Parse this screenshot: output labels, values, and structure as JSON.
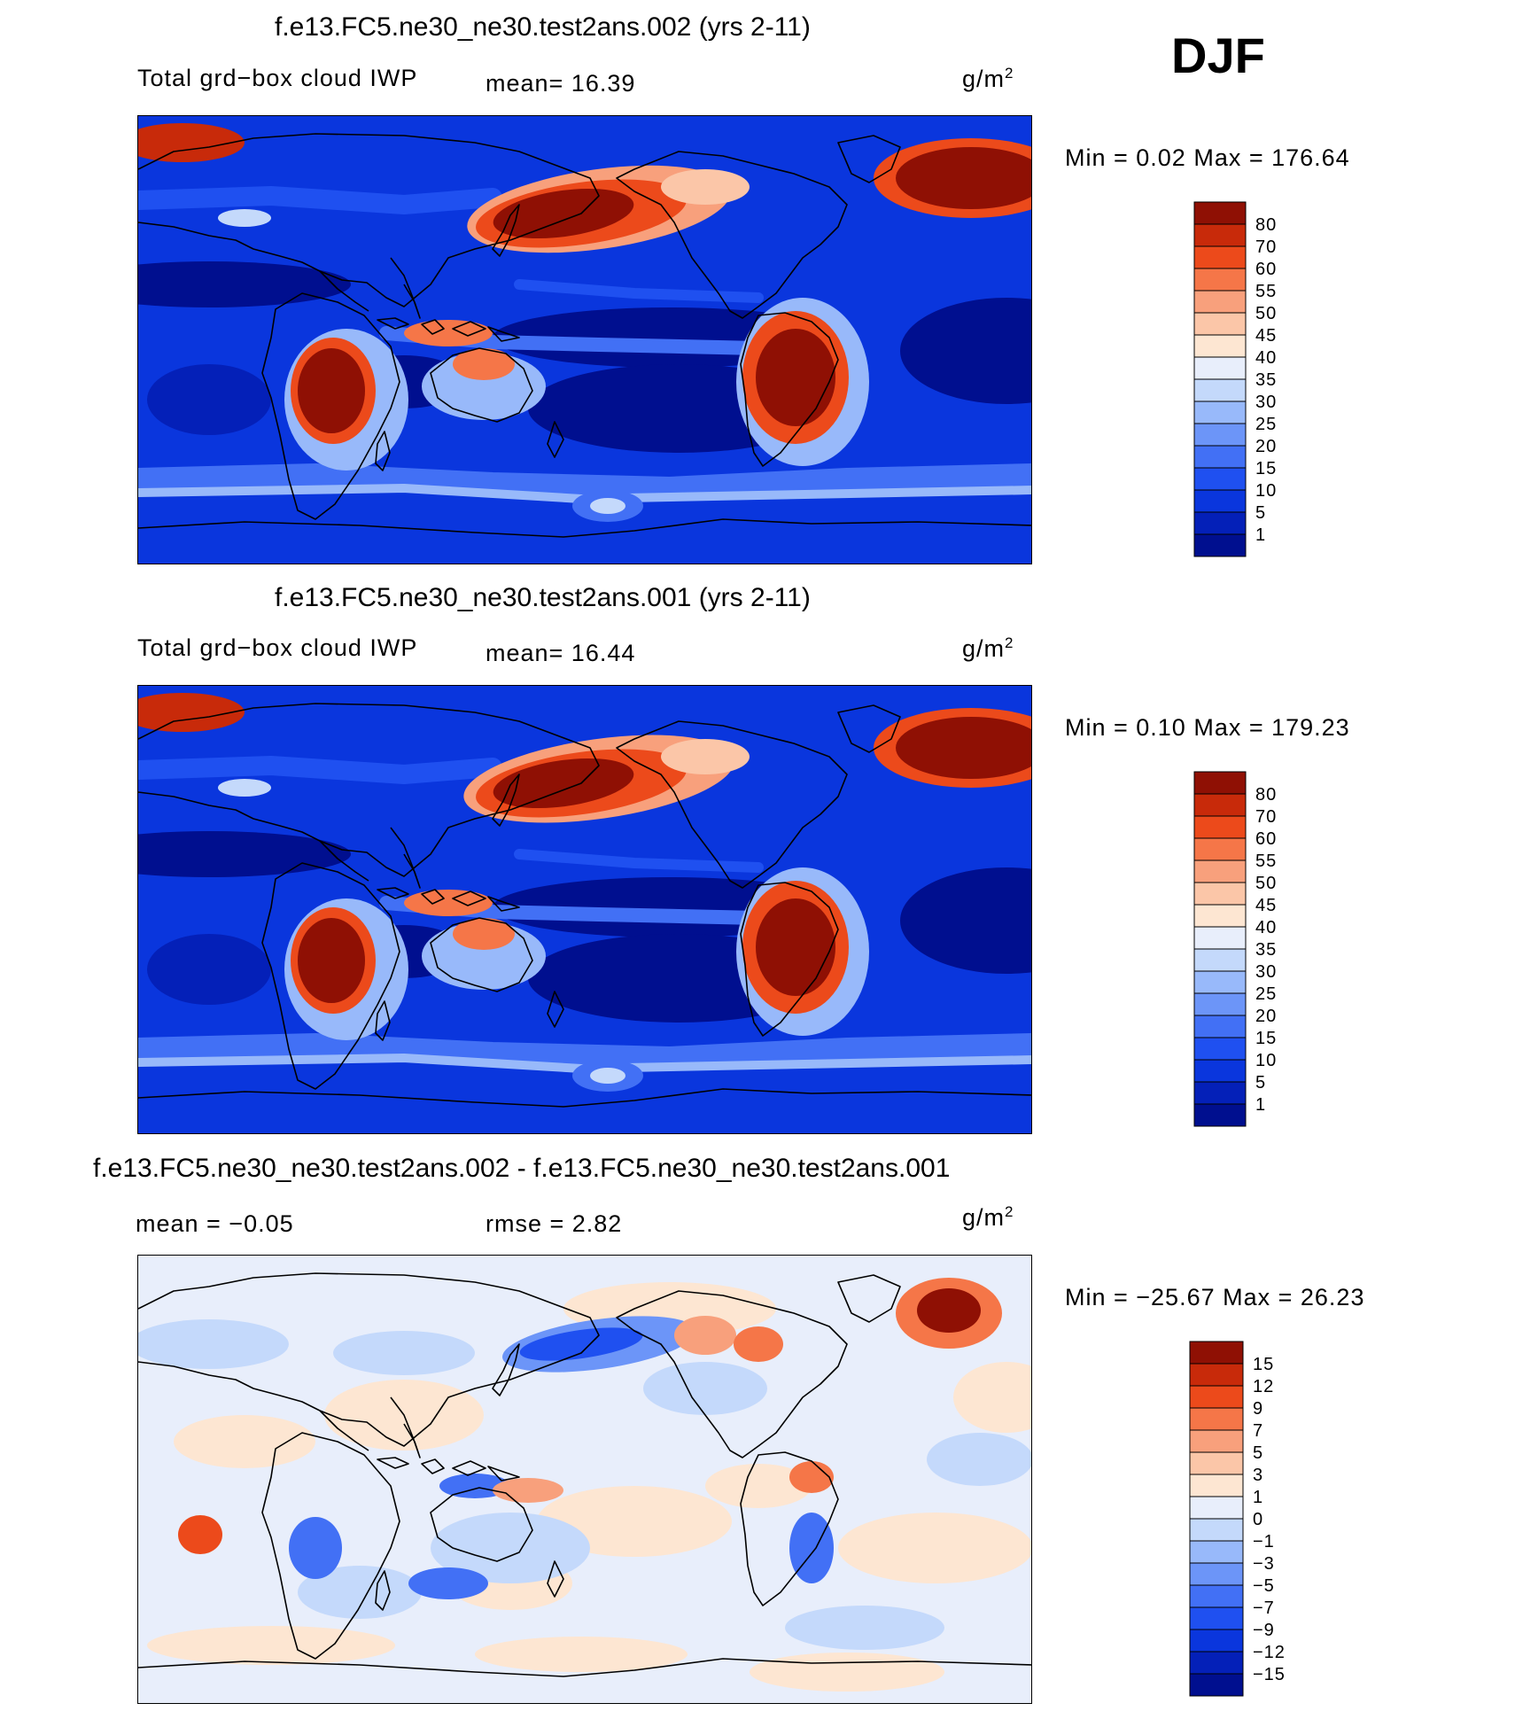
{
  "season_label": "DJF",
  "panels": [
    {
      "title": "f.e13.FC5.ne30_ne30.test2ans.002 (yrs 2-11)",
      "left_label": "Total grd−box cloud IWP",
      "center_label": "mean=   16.39",
      "unit": "g/m",
      "unit_exp": "2",
      "minmax": "Min =    0.02 Max = 176.64",
      "colorbar_key": "main"
    },
    {
      "title": "f.e13.FC5.ne30_ne30.test2ans.001 (yrs 2-11)",
      "left_label": "Total grd−box cloud IWP",
      "center_label": "mean=   16.44",
      "unit": "g/m",
      "unit_exp": "2",
      "minmax": "Min =    0.10 Max = 179.23",
      "colorbar_key": "main"
    },
    {
      "title": "f.e13.FC5.ne30_ne30.test2ans.002 - f.e13.FC5.ne30_ne30.test2ans.001",
      "left_label": "mean =  −0.05",
      "center_label": "rmse =    2.82",
      "unit": "g/m",
      "unit_exp": "2",
      "minmax": "Min = −25.67 Max =  26.23",
      "colorbar_key": "diff"
    }
  ],
  "chart_data": [
    {
      "type": "heatmap",
      "title": "f.e13.FC5.ne30_ne30.test2ans.002 (yrs 2-11)",
      "variable": "Total grd−box cloud IWP",
      "units": "g/m2",
      "mean": 16.39,
      "min": 0.02,
      "max": 176.64,
      "contour_levels": [
        1,
        5,
        10,
        15,
        20,
        25,
        30,
        35,
        40,
        45,
        50,
        55,
        60,
        70,
        80
      ],
      "colors": [
        "#000f8f",
        "#0420b8",
        "#0a36dd",
        "#1f50f0",
        "#4270f5",
        "#6c95f8",
        "#98b9fa",
        "#c4d9fb",
        "#e8eefb",
        "#fde6d2",
        "#fbc6a8",
        "#f8a07c",
        "#f57648",
        "#ec4a1b",
        "#c82a0a",
        "#8f1004"
      ]
    },
    {
      "type": "heatmap",
      "title": "f.e13.FC5.ne30_ne30.test2ans.001 (yrs 2-11)",
      "variable": "Total grd−box cloud IWP",
      "units": "g/m2",
      "mean": 16.44,
      "min": 0.1,
      "max": 179.23,
      "contour_levels": [
        1,
        5,
        10,
        15,
        20,
        25,
        30,
        35,
        40,
        45,
        50,
        55,
        60,
        70,
        80
      ],
      "colors": [
        "#000f8f",
        "#0420b8",
        "#0a36dd",
        "#1f50f0",
        "#4270f5",
        "#6c95f8",
        "#98b9fa",
        "#c4d9fb",
        "#e8eefb",
        "#fde6d2",
        "#fbc6a8",
        "#f8a07c",
        "#f57648",
        "#ec4a1b",
        "#c82a0a",
        "#8f1004"
      ]
    },
    {
      "type": "heatmap",
      "title": "f.e13.FC5.ne30_ne30.test2ans.002 - f.e13.FC5.ne30_ne30.test2ans.001",
      "units": "g/m2",
      "mean": -0.05,
      "rmse": 2.82,
      "min": -25.67,
      "max": 26.23,
      "contour_levels": [
        -15,
        -12,
        -9,
        -7,
        -5,
        -3,
        -1,
        0,
        1,
        3,
        5,
        7,
        9,
        12,
        15
      ],
      "colors": [
        "#000f8f",
        "#0420b8",
        "#0a36dd",
        "#1f50f0",
        "#4270f5",
        "#6c95f8",
        "#98b9fa",
        "#c4d9fb",
        "#e8eefb",
        "#fde6d2",
        "#fbc6a8",
        "#f8a07c",
        "#f57648",
        "#ec4a1b",
        "#c82a0a",
        "#8f1004"
      ]
    }
  ],
  "colorbars": {
    "main": {
      "labels": [
        "80",
        "70",
        "60",
        "55",
        "50",
        "45",
        "40",
        "35",
        "30",
        "25",
        "20",
        "15",
        "10",
        "5",
        "1"
      ]
    },
    "diff": {
      "labels": [
        "15",
        "12",
        "9",
        "7",
        "5",
        "3",
        "1",
        "0",
        "−1",
        "−3",
        "−5",
        "−7",
        "−9",
        "−12",
        "−15"
      ]
    }
  },
  "palette": [
    "#8f1004",
    "#c82a0a",
    "#ec4a1b",
    "#f57648",
    "#f8a07c",
    "#fbc6a8",
    "#fde6d2",
    "#e8eefb",
    "#c4d9fb",
    "#98b9fa",
    "#6c95f8",
    "#4270f5",
    "#1f50f0",
    "#0a36dd",
    "#0420b8",
    "#000f8f"
  ]
}
